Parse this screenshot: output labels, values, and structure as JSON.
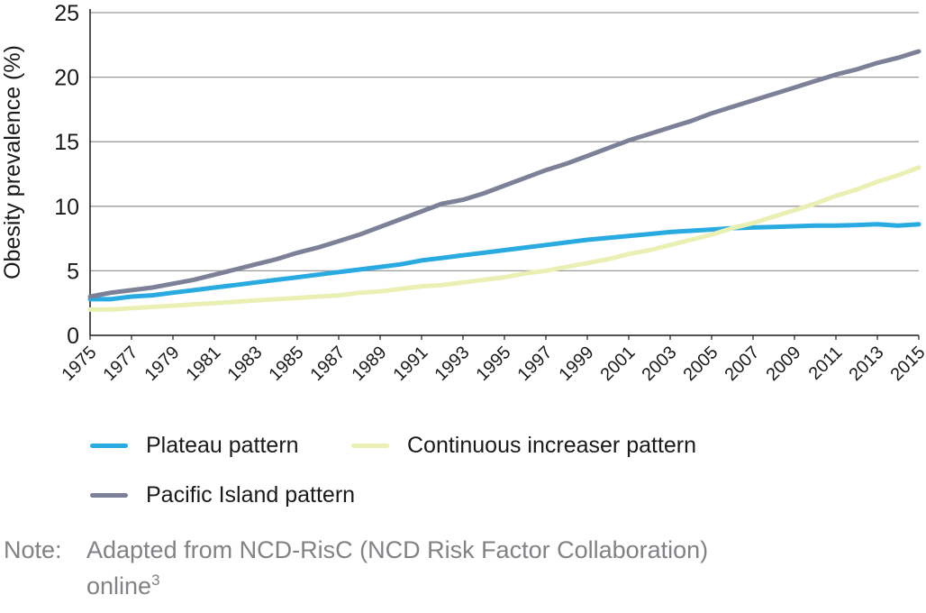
{
  "chart_data": {
    "type": "line",
    "ylabel": "Obesity prevalence (%)",
    "xlabel": "",
    "ylim": [
      0,
      25
    ],
    "y_ticks": [
      0,
      5,
      10,
      15,
      20,
      25
    ],
    "x_ticks": [
      "1975",
      "1977",
      "1979",
      "1981",
      "1983",
      "1985",
      "1987",
      "1989",
      "1991",
      "1993",
      "1995",
      "1997",
      "1999",
      "2001",
      "2003",
      "2005",
      "2007",
      "2009",
      "2011",
      "2013",
      "2015"
    ],
    "grid": true,
    "legend_position": "bottom",
    "x": [
      1975,
      1976,
      1977,
      1978,
      1979,
      1980,
      1981,
      1982,
      1983,
      1984,
      1985,
      1986,
      1987,
      1988,
      1989,
      1990,
      1991,
      1992,
      1993,
      1994,
      1995,
      1996,
      1997,
      1998,
      1999,
      2000,
      2001,
      2002,
      2003,
      2004,
      2005,
      2006,
      2007,
      2008,
      2009,
      2010,
      2011,
      2012,
      2013,
      2014,
      2015
    ],
    "series": [
      {
        "name": "Plateau pattern",
        "color": "#29abe2",
        "values": [
          2.8,
          2.8,
          3.0,
          3.1,
          3.3,
          3.5,
          3.7,
          3.9,
          4.1,
          4.3,
          4.5,
          4.7,
          4.9,
          5.1,
          5.3,
          5.5,
          5.8,
          6.0,
          6.2,
          6.4,
          6.6,
          6.8,
          7.0,
          7.2,
          7.4,
          7.55,
          7.7,
          7.85,
          8.0,
          8.1,
          8.2,
          8.3,
          8.35,
          8.4,
          8.45,
          8.5,
          8.5,
          8.55,
          8.6,
          8.5,
          8.6
        ]
      },
      {
        "name": "Continuous increaser pattern",
        "color": "#eaf0b3",
        "values": [
          2.0,
          2.0,
          2.1,
          2.2,
          2.3,
          2.4,
          2.5,
          2.6,
          2.7,
          2.8,
          2.9,
          3.0,
          3.1,
          3.3,
          3.4,
          3.6,
          3.8,
          3.9,
          4.1,
          4.3,
          4.5,
          4.8,
          5.0,
          5.3,
          5.6,
          5.9,
          6.3,
          6.6,
          7.0,
          7.4,
          7.8,
          8.3,
          8.7,
          9.2,
          9.7,
          10.2,
          10.8,
          11.3,
          11.9,
          12.4,
          13.0
        ]
      },
      {
        "name": "Pacific Island pattern",
        "color": "#7c8197",
        "values": [
          3.0,
          3.3,
          3.5,
          3.7,
          4.0,
          4.3,
          4.7,
          5.1,
          5.5,
          5.9,
          6.4,
          6.8,
          7.3,
          7.8,
          8.4,
          9.0,
          9.6,
          10.2,
          10.5,
          11.0,
          11.6,
          12.2,
          12.8,
          13.3,
          13.9,
          14.5,
          15.1,
          15.6,
          16.1,
          16.6,
          17.2,
          17.7,
          18.2,
          18.7,
          19.2,
          19.7,
          20.2,
          20.6,
          21.1,
          21.5,
          22.0
        ]
      }
    ]
  },
  "legend": {
    "items": [
      {
        "label": "Plateau pattern",
        "color": "#29abe2"
      },
      {
        "label": "Continuous increaser pattern",
        "color": "#eaf0b3"
      },
      {
        "label": "Pacific Island pattern",
        "color": "#7c8197"
      }
    ]
  },
  "note": {
    "prefix": "Note:",
    "line1": "Adapted from NCD-RisC (NCD Risk Factor Collaboration)",
    "line2": "online",
    "superscript": "3"
  }
}
